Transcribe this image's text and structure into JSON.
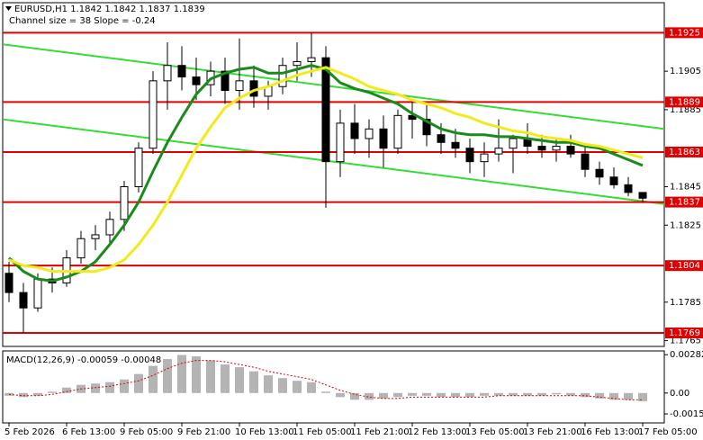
{
  "chart_data": [
    {
      "type": "candlestick",
      "title": "EURUSD,H1  1.1842 1.1842 1.1837 1.1839",
      "subtitle": "Channel size = 38 Slope = -0.24",
      "categories": [
        "5 Feb 2026",
        null,
        null,
        null,
        "6 Feb 13:00",
        null,
        null,
        null,
        "9 Feb 05:00",
        null,
        null,
        null,
        "9 Feb 21:00",
        null,
        null,
        null,
        "10 Feb 13:00",
        null,
        null,
        null,
        "11 Feb 05:00",
        null,
        null,
        null,
        "11 Feb 21:00",
        null,
        null,
        null,
        "12 Feb 13:00",
        null,
        null,
        null,
        "13 Feb 05:00",
        null,
        null,
        null,
        "13 Feb 21:00",
        null,
        null,
        null,
        "16 Feb 13:00",
        null,
        null,
        null,
        "17 Feb 05:00"
      ],
      "open": [
        1.18,
        1.179,
        1.1782,
        1.1797,
        1.1795,
        1.1808,
        1.1818,
        1.182,
        1.1828,
        1.1845,
        1.1865,
        1.19,
        1.1908,
        1.1902,
        1.1898,
        1.1905,
        1.1895,
        1.19,
        1.1892,
        1.1897,
        1.1908,
        1.191,
        1.1912,
        1.1858,
        1.1878,
        1.187,
        1.1875,
        1.1865,
        1.1882,
        1.188,
        1.1872,
        1.1868,
        1.1865,
        1.1858,
        1.1862,
        1.1865,
        1.187,
        1.1866,
        1.1864,
        1.1866,
        1.1862,
        1.1854,
        1.185,
        1.1846,
        1.1842
      ],
      "high": [
        1.1806,
        1.1795,
        1.18,
        1.1803,
        1.1812,
        1.1822,
        1.1825,
        1.1832,
        1.1848,
        1.1868,
        1.1905,
        1.192,
        1.1918,
        1.1912,
        1.191,
        1.1912,
        1.1922,
        1.1908,
        1.19,
        1.1912,
        1.192,
        1.1925,
        1.1918,
        1.1885,
        1.1888,
        1.188,
        1.1882,
        1.1885,
        1.189,
        1.1888,
        1.1878,
        1.1875,
        1.187,
        1.1868,
        1.188,
        1.1872,
        1.1878,
        1.1872,
        1.187,
        1.1872,
        1.1866,
        1.1858,
        1.1855,
        1.185,
        1.1842
      ],
      "low": [
        1.1785,
        1.1769,
        1.178,
        1.179,
        1.1793,
        1.1805,
        1.1812,
        1.1815,
        1.1822,
        1.1842,
        1.1862,
        1.1885,
        1.1895,
        1.189,
        1.1892,
        1.1888,
        1.1885,
        1.1886,
        1.1885,
        1.1893,
        1.19,
        1.1902,
        1.1834,
        1.185,
        1.1862,
        1.186,
        1.1855,
        1.1862,
        1.187,
        1.1866,
        1.1862,
        1.186,
        1.1852,
        1.185,
        1.1858,
        1.1852,
        1.1862,
        1.186,
        1.1858,
        1.186,
        1.185,
        1.1846,
        1.1844,
        1.184,
        1.1837
      ],
      "close": [
        1.179,
        1.1782,
        1.1797,
        1.1795,
        1.1808,
        1.1818,
        1.182,
        1.1828,
        1.1845,
        1.1865,
        1.19,
        1.1908,
        1.1902,
        1.1898,
        1.1905,
        1.1895,
        1.19,
        1.1892,
        1.1897,
        1.1908,
        1.191,
        1.1912,
        1.1858,
        1.1878,
        1.187,
        1.1875,
        1.1865,
        1.1882,
        1.188,
        1.1872,
        1.1868,
        1.1865,
        1.1858,
        1.1862,
        1.1865,
        1.187,
        1.1866,
        1.1864,
        1.1866,
        1.1862,
        1.1854,
        1.185,
        1.1846,
        1.1842,
        1.1839
      ],
      "series": [
        {
          "color": "#1a8a1a",
          "values": [
            1.1808,
            1.1801,
            1.1797,
            1.1796,
            1.1798,
            1.1801,
            1.1806,
            1.1815,
            1.1825,
            1.1837,
            1.1853,
            1.1868,
            1.1881,
            1.1893,
            1.1901,
            1.1904,
            1.1906,
            1.1907,
            1.1904,
            1.1904,
            1.1906,
            1.1908,
            1.1906,
            1.1899,
            1.1896,
            1.1894,
            1.1891,
            1.1888,
            1.1883,
            1.1879,
            1.1875,
            1.1873,
            1.1872,
            1.1872,
            1.1871,
            1.1871,
            1.187,
            1.1869,
            1.1868,
            1.1868,
            1.1866,
            1.1865,
            1.1862,
            1.1859,
            1.1856
          ]
        },
        {
          "color": "#f2ea1c",
          "values": [
            1.1807,
            1.1804,
            1.1803,
            1.1801,
            1.1801,
            1.1801,
            1.1801,
            1.1803,
            1.1807,
            1.1815,
            1.1825,
            1.1837,
            1.1851,
            1.1865,
            1.1876,
            1.1886,
            1.1891,
            1.1895,
            1.1897,
            1.19,
            1.1903,
            1.1905,
            1.1907,
            1.1904,
            1.1901,
            1.1897,
            1.1895,
            1.1893,
            1.189,
            1.1888,
            1.1886,
            1.1883,
            1.1881,
            1.1878,
            1.1876,
            1.1874,
            1.1873,
            1.1871,
            1.187,
            1.1869,
            1.1867,
            1.1866,
            1.1864,
            1.1862,
            1.186
          ]
        }
      ],
      "channel": {
        "color": "#33dd33",
        "upper": [
          1.1919,
          1.1875
        ],
        "lower": [
          1.188,
          1.1836
        ]
      },
      "levels": [
        1.1925,
        1.1889,
        1.1863,
        1.1837,
        1.1804,
        1.1769
      ],
      "level_color": "#e00000",
      "ylim": [
        1.1762,
        1.1942
      ],
      "yticks": [
        1.1905,
        1.1885,
        1.1845,
        1.1825,
        1.1785,
        1.1765
      ]
    },
    {
      "type": "macd",
      "title": "MACD(12,26,9) -0.00059 -0.00048",
      "histogram": [
        -0.0002,
        -0.0003,
        -0.0002,
        0.0001,
        0.0004,
        0.0006,
        0.0007,
        0.0008,
        0.001,
        0.0014,
        0.002,
        0.0025,
        0.0028,
        0.0027,
        0.0024,
        0.0021,
        0.0019,
        0.0016,
        0.0013,
        0.0011,
        0.0009,
        0.0008,
        0.0001,
        -0.0003,
        -0.0005,
        -0.0005,
        -0.0004,
        -0.0003,
        -0.0002,
        -0.0002,
        -0.0003,
        -0.0003,
        -0.0003,
        -0.0002,
        -0.0002,
        -0.0002,
        -0.0002,
        -0.0002,
        -0.0001,
        -0.0002,
        -0.0003,
        -0.0004,
        -0.0005,
        -0.0005,
        -0.0006
      ],
      "signal": [
        -0.0001,
        -0.0002,
        -0.0002,
        -0.0001,
        0.0001,
        0.0003,
        0.0004,
        0.0005,
        0.0007,
        0.0009,
        0.0013,
        0.0018,
        0.0022,
        0.0024,
        0.0024,
        0.0023,
        0.0021,
        0.0019,
        0.0016,
        0.0014,
        0.0012,
        0.001,
        0.0006,
        0.0002,
        -0.0001,
        -0.0003,
        -0.0004,
        -0.0004,
        -0.0003,
        -0.0003,
        -0.0003,
        -0.0003,
        -0.0003,
        -0.0003,
        -0.0002,
        -0.0002,
        -0.0002,
        -0.0002,
        -0.0002,
        -0.0002,
        -0.0002,
        -0.0003,
        -0.0004,
        -0.0005,
        -0.0005
      ],
      "histogram_color": "#b4b4b4",
      "signal_color": "#e00000",
      "ylim": [
        -0.0022,
        0.0031
      ],
      "yticks": [
        0.00282,
        {
          "value": 0,
          "label": "0.00"
        },
        -0.00154
      ]
    }
  ]
}
